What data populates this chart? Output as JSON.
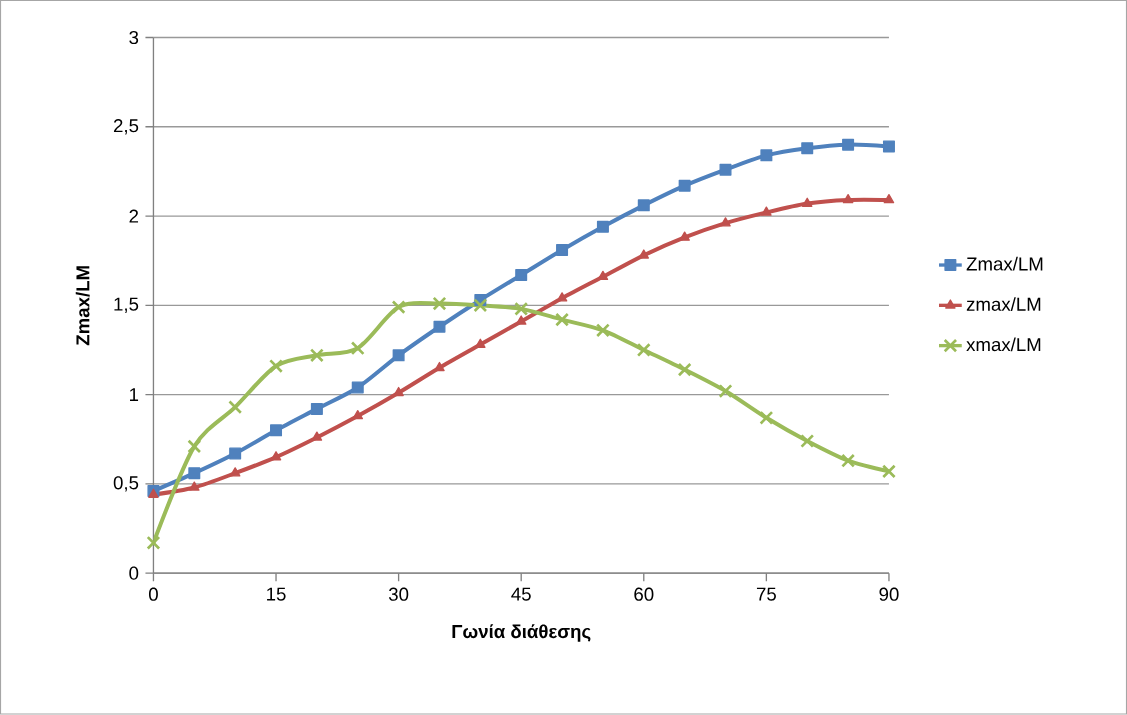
{
  "chart_data": {
    "type": "line",
    "xlabel": "Γωνία διάθεσης",
    "ylabel": "Zmax/LM",
    "x": [
      0,
      5,
      10,
      15,
      20,
      25,
      30,
      35,
      40,
      45,
      50,
      55,
      60,
      65,
      70,
      75,
      80,
      85,
      90
    ],
    "series": [
      {
        "name": "Zmax/LM",
        "color": "#4f81bd",
        "marker": "square",
        "values": [
          0.46,
          0.56,
          0.67,
          0.8,
          0.92,
          1.04,
          1.22,
          1.38,
          1.53,
          1.67,
          1.81,
          1.94,
          2.06,
          2.17,
          2.26,
          2.34,
          2.38,
          2.4,
          2.39
        ]
      },
      {
        "name": "zmax/LM",
        "color": "#c0504d",
        "marker": "triangle",
        "values": [
          0.44,
          0.48,
          0.56,
          0.65,
          0.76,
          0.88,
          1.01,
          1.15,
          1.28,
          1.41,
          1.54,
          1.66,
          1.78,
          1.88,
          1.96,
          2.02,
          2.07,
          2.09,
          2.09
        ]
      },
      {
        "name": "xmax/LM",
        "color": "#9bbb59",
        "marker": "cross",
        "values": [
          0.17,
          0.71,
          0.93,
          1.16,
          1.22,
          1.26,
          1.49,
          1.51,
          1.5,
          1.48,
          1.42,
          1.36,
          1.25,
          1.14,
          1.02,
          0.87,
          0.74,
          0.63,
          0.57
        ]
      }
    ],
    "xlim": [
      0,
      90
    ],
    "xticks": [
      0,
      15,
      30,
      45,
      60,
      75,
      90
    ],
    "ylim": [
      0,
      3
    ],
    "yticks": [
      0,
      {
        "value": 0.5,
        "label": "0,5"
      },
      1,
      {
        "value": 1.5,
        "label": "1,5"
      },
      2,
      {
        "value": 2.5,
        "label": "2,5"
      },
      3
    ],
    "grid": "y",
    "legend": "right",
    "line_style": "solid"
  }
}
